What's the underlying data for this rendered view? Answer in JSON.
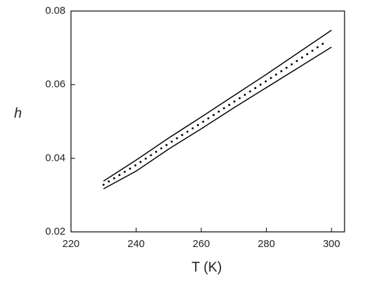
{
  "chart_data": {
    "type": "line",
    "xlabel": "T (K)",
    "ylabel": "h",
    "xlim": [
      220,
      304
    ],
    "xticks": [
      220,
      240,
      260,
      280,
      300
    ],
    "ylim": [
      0.02,
      0.08
    ],
    "yticks": [
      0.02,
      0.04,
      0.06,
      0.08
    ],
    "series": [
      {
        "color": "#000000",
        "dash": "solid",
        "x": [
          230,
          240,
          250,
          260,
          270,
          280,
          290,
          300
        ],
        "values": [
          0.0338,
          0.0395,
          0.0455,
          0.0512,
          0.057,
          0.0628,
          0.0688,
          0.0748
        ]
      },
      {
        "color": "#000000",
        "dash": "solid",
        "x": [
          230,
          240,
          250,
          260,
          270,
          280,
          290,
          300
        ],
        "values": [
          0.0317,
          0.0365,
          0.0425,
          0.048,
          0.0537,
          0.0592,
          0.0647,
          0.0702
        ]
      },
      {
        "color": "#000000",
        "dash": "dotted",
        "x": [
          230,
          240,
          250,
          260,
          270,
          280,
          290,
          298
        ],
        "values": [
          0.0328,
          0.0382,
          0.044,
          0.0496,
          0.0553,
          0.061,
          0.0668,
          0.0715
        ]
      }
    ]
  }
}
